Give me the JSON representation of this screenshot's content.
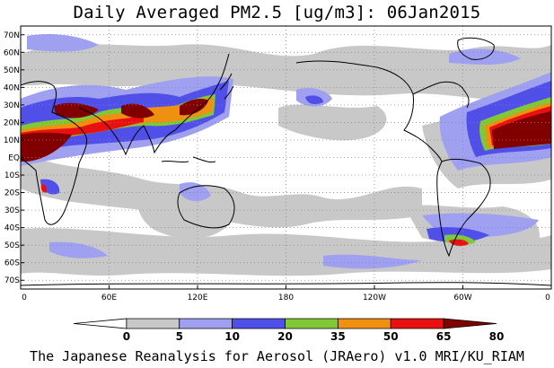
{
  "title": "Daily Averaged PM2.5 [ug/m3]: 06Jan2015",
  "footer": "The Japanese Reanalysis for Aerosol (JRAero) v1.0 MRI/KU_RIAM",
  "map": {
    "lon_range": [
      0,
      360
    ],
    "lat_range": [
      -75,
      75
    ],
    "lat_labels": [
      "70N",
      "60N",
      "50N",
      "40N",
      "30N",
      "20N",
      "10N",
      "EQ",
      "10S",
      "20S",
      "30S",
      "40S",
      "50S",
      "60S",
      "70S"
    ],
    "lon_labels": [
      "0",
      "60E",
      "120E",
      "180",
      "120W",
      "60W",
      "0"
    ],
    "grid": "dotted"
  },
  "colorbar": {
    "levels": [
      "0",
      "5",
      "10",
      "20",
      "35",
      "50",
      "65",
      "80"
    ],
    "colors": [
      "#ffffff",
      "#c8c8c8",
      "#a0a0f0",
      "#5050e8",
      "#80c838",
      "#f09010",
      "#e81010",
      "#800000"
    ]
  }
}
